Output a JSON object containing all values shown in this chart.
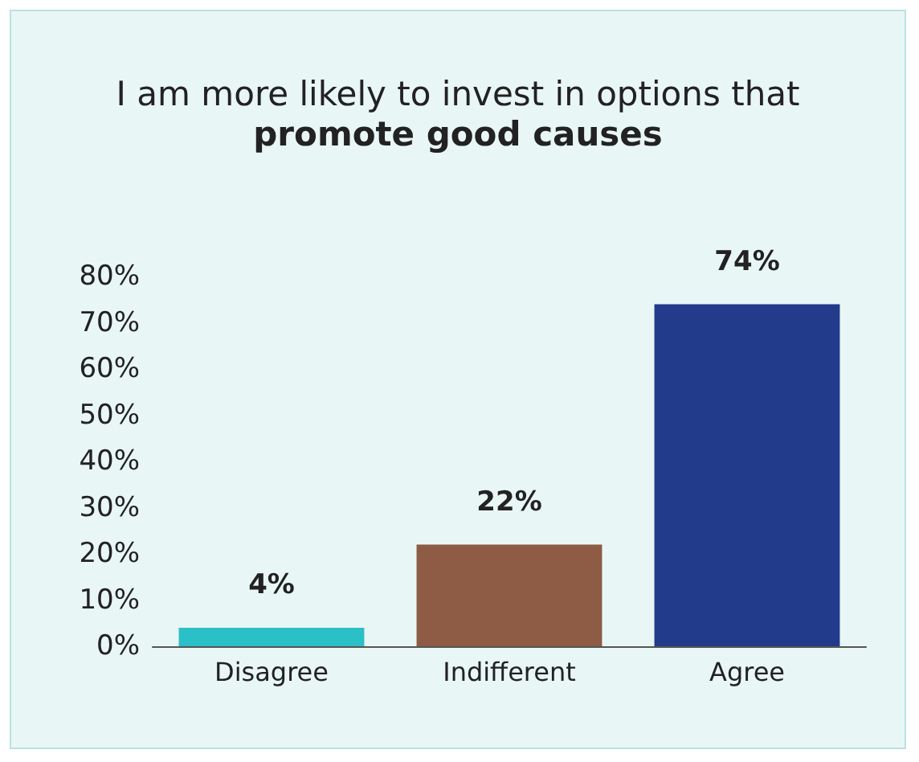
{
  "chart_data": {
    "type": "bar",
    "title": "I am more likely to invest in options that",
    "subtitle": "promote good causes",
    "categories": [
      "Disagree",
      "Indifferent",
      "Agree"
    ],
    "values": [
      4,
      22,
      74
    ],
    "colors": [
      "#2bbfc8",
      "#8e5b45",
      "#233b8b"
    ],
    "value_labels": [
      "4%",
      "22%",
      "74%"
    ],
    "ylim": [
      0,
      80
    ],
    "yticks": [
      {
        "value": 0,
        "label": "0%"
      },
      {
        "value": 10,
        "label": "10%"
      },
      {
        "value": 20,
        "label": "20%"
      },
      {
        "value": 30,
        "label": "30%"
      },
      {
        "value": 40,
        "label": "40%"
      },
      {
        "value": 50,
        "label": "50%"
      },
      {
        "value": 60,
        "label": "60%"
      },
      {
        "value": 70,
        "label": "70%"
      },
      {
        "value": 80,
        "label": "80%"
      }
    ],
    "grid": false
  }
}
